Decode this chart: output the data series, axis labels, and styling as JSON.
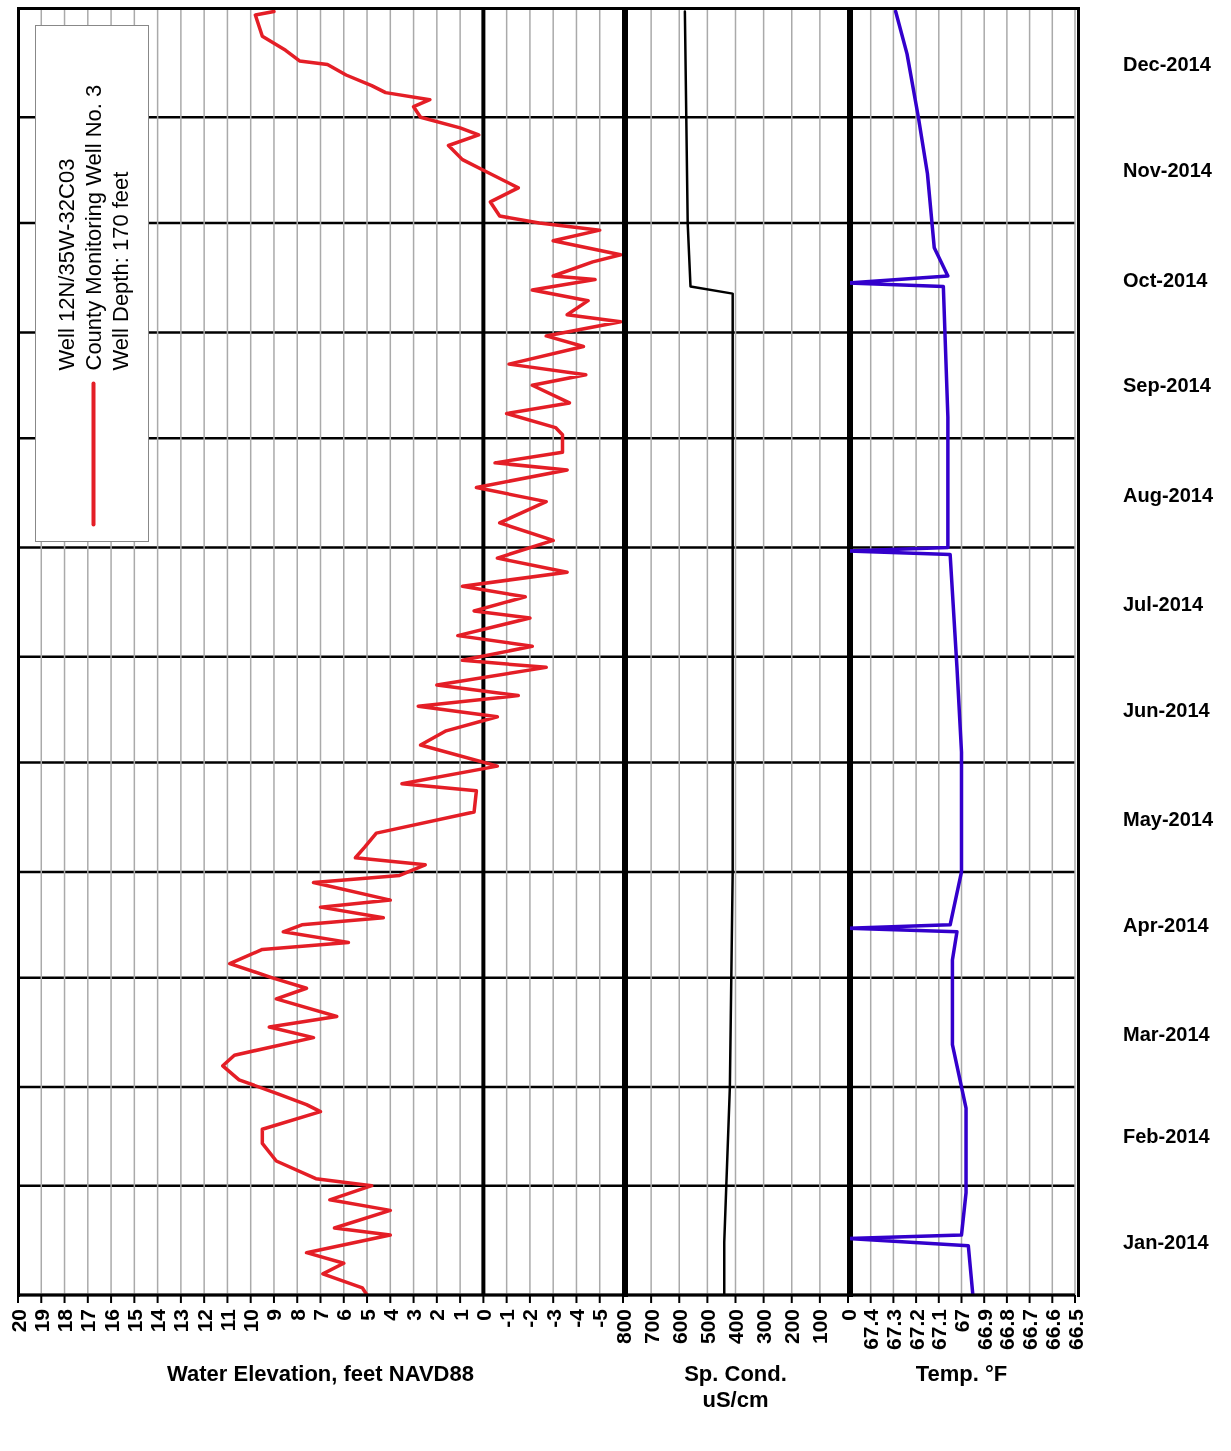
{
  "chart_data": [
    {
      "type": "line",
      "orientation": "horizontal",
      "xlabel": "Water Elevation, feet NAVD88",
      "legend_title": "Well 12N/35W-32C03",
      "legend": "top left",
      "annotations": [
        "Well Depth: 170 feet"
      ],
      "grid": true,
      "tick_labels": "x",
      "xlim": [
        20,
        -6
      ],
      "xticks": [
        20,
        19,
        18,
        17,
        16,
        15,
        14,
        13,
        12,
        11,
        10,
        9,
        8,
        7,
        6,
        5,
        4,
        3,
        2,
        1,
        0,
        -1,
        -2,
        -3,
        -4,
        -5
      ],
      "ylim": [
        "2014-01-01",
        "2015-01-01"
      ],
      "yticks": [
        {
          "value": "2014-01-01",
          "label": null
        },
        {
          "value": "2014-02-01",
          "label": null
        },
        {
          "value": "2014-03-01",
          "label": null
        },
        {
          "value": "2014-04-01",
          "label": null
        },
        {
          "value": "2014-05-01",
          "label": null
        },
        {
          "value": "2014-06-01",
          "label": null
        },
        {
          "value": "2014-07-01",
          "label": null
        },
        {
          "value": "2014-08-01",
          "label": null
        },
        {
          "value": "2014-09-01",
          "label": null
        },
        {
          "value": "2014-10-01",
          "label": null
        },
        {
          "value": "2014-11-01",
          "label": null
        },
        {
          "value": "2014-12-01",
          "label": null
        },
        {
          "value": "2015-01-01",
          "label": null
        }
      ],
      "ref_lines": [
        {
          "axis": "x",
          "value": 0,
          "color": "#000000"
        }
      ],
      "series": [
        {
          "name": "County Monitoring Well No. 3",
          "color": "#e41e26",
          "x": [
            "2014-01-01",
            "2014-01-03",
            "2014-01-07",
            "2014-01-10",
            "2014-01-13",
            "2014-01-18",
            "2014-01-20",
            "2014-01-25",
            "2014-01-28",
            "2014-02-01",
            "2014-02-03",
            "2014-02-08",
            "2014-02-13",
            "2014-02-17",
            "2014-02-22",
            "2014-02-24",
            "2014-02-27",
            "2014-03-03",
            "2014-03-07",
            "2014-03-10",
            "2014-03-15",
            "2014-03-18",
            "2014-03-21",
            "2014-03-26",
            "2014-03-29",
            "2014-04-01",
            "2014-04-05",
            "2014-04-09",
            "2014-04-11",
            "2014-04-14",
            "2014-04-16",
            "2014-04-18",
            "2014-04-21",
            "2014-04-23",
            "2014-04-28",
            "2014-04-30",
            "2014-05-03",
            "2014-05-05",
            "2014-05-08",
            "2014-05-12",
            "2014-05-18",
            "2014-05-24",
            "2014-05-26",
            "2014-05-31",
            "2014-06-06",
            "2014-06-10",
            "2014-06-14",
            "2014-06-17",
            "2014-06-20",
            "2014-06-23",
            "2014-06-28",
            "2014-06-30",
            "2014-07-04",
            "2014-07-07",
            "2014-07-12",
            "2014-07-14",
            "2014-07-18",
            "2014-07-21",
            "2014-07-25",
            "2014-07-29",
            "2014-08-03",
            "2014-08-08",
            "2014-08-14",
            "2014-08-18",
            "2014-08-23",
            "2014-08-25",
            "2014-08-28",
            "2014-09-02",
            "2014-09-04",
            "2014-09-08",
            "2014-09-11",
            "2014-09-16",
            "2014-09-19",
            "2014-09-22",
            "2014-09-27",
            "2014-09-30",
            "2014-10-04",
            "2014-10-06",
            "2014-10-10",
            "2014-10-13",
            "2014-10-16",
            "2014-10-17",
            "2014-10-21",
            "2014-10-23",
            "2014-10-27",
            "2014-10-30",
            "2014-11-01",
            "2014-11-03",
            "2014-11-07",
            "2014-11-11",
            "2014-11-15",
            "2014-11-19",
            "2014-11-23",
            "2014-11-26",
            "2014-11-28",
            "2014-12-01",
            "2014-12-04",
            "2014-12-06",
            "2014-12-08",
            "2014-12-10",
            "2014-12-13",
            "2014-12-16",
            "2014-12-17",
            "2014-12-20",
            "2014-12-24",
            "2014-12-30",
            "2014-12-31"
          ],
          "values": [
            5.0,
            5.2,
            6.9,
            6.0,
            7.6,
            4.0,
            6.4,
            4.0,
            6.6,
            4.8,
            7.2,
            8.9,
            9.5,
            9.5,
            7.0,
            7.6,
            8.8,
            10.5,
            11.2,
            10.7,
            7.3,
            9.2,
            6.3,
            8.9,
            7.6,
            9.1,
            10.9,
            9.5,
            5.8,
            8.6,
            7.8,
            4.3,
            7.0,
            4.0,
            7.3,
            3.6,
            2.5,
            5.5,
            5.1,
            4.6,
            0.4,
            0.3,
            3.5,
            -0.6,
            2.7,
            1.6,
            -0.6,
            2.8,
            -1.5,
            2.0,
            -2.7,
            0.9,
            -2.1,
            1.1,
            -2.0,
            0.4,
            -1.8,
            0.9,
            -3.6,
            -0.6,
            -3.0,
            -0.7,
            -2.7,
            0.3,
            -3.6,
            -0.5,
            -3.4,
            -3.4,
            -3.1,
            -1.0,
            -3.7,
            -2.1,
            -4.4,
            -1.1,
            -4.3,
            -2.7,
            -5.9,
            -3.6,
            -4.5,
            -2.1,
            -4.8,
            -3.0,
            -4.7,
            -5.9,
            -3.0,
            -5.0,
            -2.4,
            -0.7,
            -0.3,
            -1.5,
            -0.3,
            0.9,
            1.5,
            0.2,
            1.0,
            2.7,
            3.0,
            2.3,
            4.2,
            4.8,
            5.9,
            6.7,
            7.9,
            8.5,
            9.5,
            9.8,
            9.0
          ]
        }
      ]
    },
    {
      "type": "line",
      "orientation": "horizontal",
      "xlabel": "Sp. Cond. uS/cm",
      "grid": true,
      "tick_labels": "x",
      "xlim": [
        800,
        0
      ],
      "xticks": [
        800,
        700,
        600,
        500,
        400,
        300,
        200,
        100,
        0
      ],
      "ylim": [
        "2014-01-01",
        "2015-01-01"
      ],
      "yticks": [
        {
          "value": "2014-01-01",
          "label": null
        },
        {
          "value": "2014-02-01",
          "label": null
        },
        {
          "value": "2014-03-01",
          "label": null
        },
        {
          "value": "2014-04-01",
          "label": null
        },
        {
          "value": "2014-05-01",
          "label": null
        },
        {
          "value": "2014-06-01",
          "label": null
        },
        {
          "value": "2014-07-01",
          "label": null
        },
        {
          "value": "2014-08-01",
          "label": null
        },
        {
          "value": "2014-09-01",
          "label": null
        },
        {
          "value": "2014-10-01",
          "label": null
        },
        {
          "value": "2014-11-01",
          "label": null
        },
        {
          "value": "2014-12-01",
          "label": null
        },
        {
          "value": "2015-01-01",
          "label": null
        }
      ],
      "series": [
        {
          "color": "#000000",
          "x": [
            "2014-01-01",
            "2014-01-16",
            "2014-03-01",
            "2014-05-01",
            "2014-08-01",
            "2014-10-12",
            "2014-10-13",
            "2014-10-14",
            "2014-11-01",
            "2014-12-31"
          ],
          "values": [
            440,
            440,
            420,
            410,
            410,
            410,
            null,
            560,
            570,
            580
          ]
        }
      ]
    },
    {
      "type": "line",
      "orientation": "horizontal",
      "xlabel": "Temp. °F",
      "grid": true,
      "xlim": [
        67.5,
        66.5
      ],
      "xticks": [
        67.4,
        67.3,
        67.2,
        67.1,
        67,
        66.9,
        66.8,
        66.7,
        66.6,
        66.5
      ],
      "ylim": [
        "2014-01-01",
        "2015-01-01"
      ],
      "yticks": [
        {
          "value": "2014-01-01",
          "label": null
        },
        {
          "value": "2014-01-16",
          "label": "Jan-2014"
        },
        {
          "value": "2014-02-01",
          "label": null
        },
        {
          "value": "2014-02-15",
          "label": "Feb-2014"
        },
        {
          "value": "2014-03-01",
          "label": null
        },
        {
          "value": "2014-03-16",
          "label": "Mar-2014"
        },
        {
          "value": "2014-04-01",
          "label": null
        },
        {
          "value": "2014-04-16",
          "label": "Apr-2014"
        },
        {
          "value": "2014-05-01",
          "label": null
        },
        {
          "value": "2014-05-16",
          "label": "May-2014"
        },
        {
          "value": "2014-06-01",
          "label": null
        },
        {
          "value": "2014-06-16",
          "label": "Jun-2014"
        },
        {
          "value": "2014-07-01",
          "label": null
        },
        {
          "value": "2014-07-16",
          "label": "Jul-2014"
        },
        {
          "value": "2014-08-01",
          "label": null
        },
        {
          "value": "2014-08-16",
          "label": "Aug-2014"
        },
        {
          "value": "2014-09-01",
          "label": null
        },
        {
          "value": "2014-09-16",
          "label": "Sep-2014"
        },
        {
          "value": "2014-10-01",
          "label": null
        },
        {
          "value": "2014-10-16",
          "label": "Oct-2014"
        },
        {
          "value": "2014-11-01",
          "label": null
        },
        {
          "value": "2014-11-16",
          "label": "Nov-2014"
        },
        {
          "value": "2014-12-01",
          "label": null
        },
        {
          "value": "2014-12-16",
          "label": "Dec-2014"
        },
        {
          "value": "2015-01-01",
          "label": null
        }
      ],
      "series": [
        {
          "color": "#3300cc",
          "x": [
            "2014-01-01",
            "2014-01-15",
            "2014-01-17",
            "2014-01-18",
            "2014-01-30",
            "2014-02-23",
            "2014-03-13",
            "2014-04-06",
            "2014-04-14",
            "2014-04-15",
            "2014-04-16",
            "2014-05-01",
            "2014-06-04",
            "2014-06-28",
            "2014-07-30",
            "2014-07-31",
            "2014-08-01",
            "2014-09-07",
            "2014-10-14",
            "2014-10-15",
            "2014-10-17",
            "2014-10-25",
            "2014-11-15",
            "2014-12-01",
            "2014-12-19",
            "2014-12-31"
          ],
          "values": [
            66.95,
            66.97,
            67.5,
            67.0,
            66.98,
            66.98,
            67.04,
            67.04,
            67.02,
            67.5,
            67.05,
            67.0,
            67.0,
            67.02,
            67.05,
            67.5,
            67.06,
            67.06,
            67.08,
            67.5,
            67.06,
            67.12,
            67.15,
            67.19,
            67.24,
            67.29
          ]
        }
      ]
    }
  ]
}
